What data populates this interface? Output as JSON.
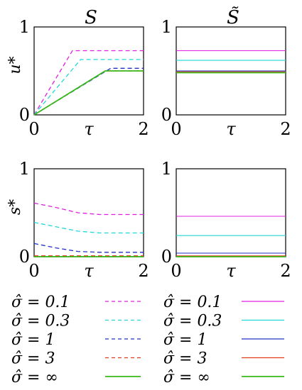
{
  "panel_titles": {
    "left": "S",
    "right": "S̃"
  },
  "colors": {
    "sigma_0.1": "#e020e0",
    "sigma_0.3": "#20d8d8",
    "sigma_1": "#2030c8",
    "sigma_3": "#e03a1a",
    "sigma_inf": "#3ab81a"
  },
  "legend": {
    "left": [
      {
        "label": "σ̂ = 0.1",
        "color": "#e020e0",
        "dash": true
      },
      {
        "label": "σ̂ = 0.3",
        "color": "#20d8d8",
        "dash": true
      },
      {
        "label": "σ̂ = 1",
        "color": "#2030c8",
        "dash": true
      },
      {
        "label": "σ̂ = 3",
        "color": "#e03a1a",
        "dash": true
      },
      {
        "label": "σ̂ = ∞",
        "color": "#3ab81a",
        "dash": false
      }
    ],
    "right": [
      {
        "label": "σ̂ = 0.1",
        "color": "#e020e0",
        "dash": false
      },
      {
        "label": "σ̂ = 0.3",
        "color": "#20d8d8",
        "dash": false
      },
      {
        "label": "σ̂ = 1",
        "color": "#2030c8",
        "dash": false
      },
      {
        "label": "σ̂ = 3",
        "color": "#e03a1a",
        "dash": false
      },
      {
        "label": "σ̂ = ∞",
        "color": "#3ab81a",
        "dash": false
      }
    ]
  },
  "chart_data": [
    {
      "type": "line",
      "panel": "top-left",
      "title": "S",
      "xlabel": "τ",
      "ylabel": "u*",
      "xlim": [
        0,
        2
      ],
      "ylim": [
        0,
        1
      ],
      "x_ticks": [
        "0",
        "2"
      ],
      "y_ticks": [
        "0",
        "1"
      ],
      "series": [
        {
          "color": "#e020e0",
          "dashed": true,
          "x": [
            0,
            0.7,
            2
          ],
          "y": [
            0,
            0.73,
            0.73
          ]
        },
        {
          "color": "#20d8d8",
          "dashed": true,
          "x": [
            0,
            0.85,
            2
          ],
          "y": [
            0,
            0.63,
            0.63
          ]
        },
        {
          "color": "#2030c8",
          "dashed": true,
          "x": [
            0,
            1.4,
            2
          ],
          "y": [
            0,
            0.53,
            0.53
          ]
        },
        {
          "color": "#e03a1a",
          "dashed": true,
          "x": [
            0,
            1.3,
            2
          ],
          "y": [
            0,
            0.5,
            0.5
          ]
        },
        {
          "color": "#3ab81a",
          "dashed": false,
          "x": [
            0,
            1.3,
            2
          ],
          "y": [
            0,
            0.5,
            0.5
          ]
        }
      ]
    },
    {
      "type": "line",
      "panel": "top-right",
      "title": "S̃",
      "xlabel": "τ",
      "ylabel": "",
      "xlim": [
        0,
        2
      ],
      "ylim": [
        0,
        1
      ],
      "x_ticks": [
        "0",
        "2"
      ],
      "y_ticks": [
        "0",
        "1"
      ],
      "series": [
        {
          "color": "#e020e0",
          "dashed": false,
          "x": [
            0,
            2
          ],
          "y": [
            0.73,
            0.73
          ]
        },
        {
          "color": "#20d8d8",
          "dashed": false,
          "x": [
            0,
            2
          ],
          "y": [
            0.62,
            0.62
          ]
        },
        {
          "color": "#2030c8",
          "dashed": false,
          "x": [
            0,
            2
          ],
          "y": [
            0.5,
            0.5
          ]
        },
        {
          "color": "#e03a1a",
          "dashed": false,
          "x": [
            0,
            2
          ],
          "y": [
            0.49,
            0.49
          ]
        },
        {
          "color": "#3ab81a",
          "dashed": false,
          "x": [
            0,
            2
          ],
          "y": [
            0.48,
            0.48
          ]
        }
      ]
    },
    {
      "type": "line",
      "panel": "bottom-left",
      "title": "",
      "xlabel": "τ",
      "ylabel": "s*",
      "xlim": [
        0,
        2
      ],
      "ylim": [
        0,
        1
      ],
      "x_ticks": [
        "0",
        "2"
      ],
      "y_ticks": [
        "0",
        "1"
      ],
      "series": [
        {
          "color": "#e020e0",
          "dashed": true,
          "x": [
            0,
            0.4,
            0.8,
            1.2,
            2
          ],
          "y": [
            0.61,
            0.56,
            0.5,
            0.48,
            0.48
          ]
        },
        {
          "color": "#20d8d8",
          "dashed": true,
          "x": [
            0,
            0.4,
            0.8,
            1.2,
            2
          ],
          "y": [
            0.39,
            0.34,
            0.29,
            0.27,
            0.27
          ]
        },
        {
          "color": "#2030c8",
          "dashed": true,
          "x": [
            0,
            0.4,
            0.8,
            1.2,
            2
          ],
          "y": [
            0.15,
            0.1,
            0.06,
            0.05,
            0.05
          ]
        },
        {
          "color": "#e03a1a",
          "dashed": true,
          "x": [
            0,
            2
          ],
          "y": [
            0.01,
            0.01
          ]
        },
        {
          "color": "#3ab81a",
          "dashed": false,
          "x": [
            0,
            2
          ],
          "y": [
            0.0,
            0.0
          ]
        }
      ]
    },
    {
      "type": "line",
      "panel": "bottom-right",
      "title": "",
      "xlabel": "τ",
      "ylabel": "",
      "xlim": [
        0,
        2
      ],
      "ylim": [
        0,
        1
      ],
      "x_ticks": [
        "0",
        "2"
      ],
      "y_ticks": [
        "0",
        "1"
      ],
      "series": [
        {
          "color": "#e020e0",
          "dashed": false,
          "x": [
            0,
            2
          ],
          "y": [
            0.46,
            0.46
          ]
        },
        {
          "color": "#20d8d8",
          "dashed": false,
          "x": [
            0,
            2
          ],
          "y": [
            0.24,
            0.24
          ]
        },
        {
          "color": "#2030c8",
          "dashed": false,
          "x": [
            0,
            2
          ],
          "y": [
            0.04,
            0.04
          ]
        },
        {
          "color": "#e03a1a",
          "dashed": false,
          "x": [
            0,
            2
          ],
          "y": [
            0.01,
            0.01
          ]
        },
        {
          "color": "#3ab81a",
          "dashed": false,
          "x": [
            0,
            2
          ],
          "y": [
            0.0,
            0.0
          ]
        }
      ]
    }
  ]
}
